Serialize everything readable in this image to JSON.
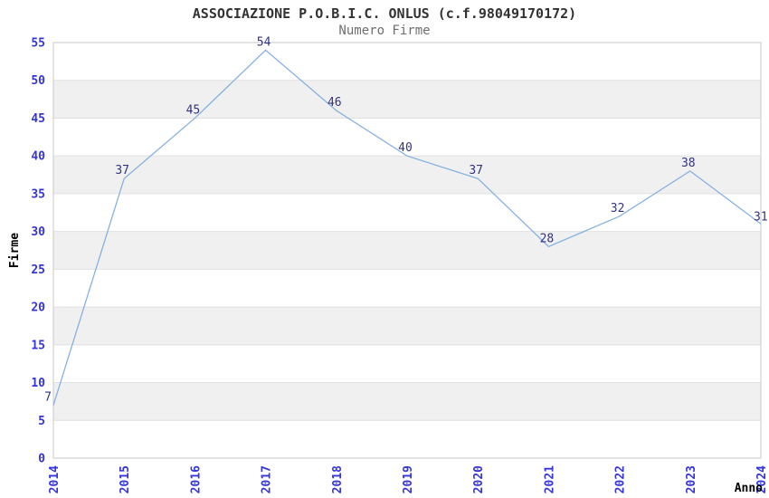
{
  "chart_data": {
    "type": "line",
    "title": "ASSOCIAZIONE P.O.B.I.C. ONLUS (c.f.98049170172)",
    "subtitle": "Numero Firme",
    "xlabel": "Anno",
    "ylabel": "Firme",
    "categories": [
      "2014",
      "2015",
      "2016",
      "2017",
      "2018",
      "2019",
      "2020",
      "2021",
      "2022",
      "2023",
      "2024"
    ],
    "values": [
      7,
      37,
      45,
      54,
      46,
      40,
      37,
      28,
      32,
      38,
      31
    ],
    "ylim": [
      0,
      55
    ],
    "ytick_step": 5,
    "yticks": [
      0,
      5,
      10,
      15,
      20,
      25,
      30,
      35,
      40,
      45,
      50,
      55
    ],
    "grid": "horizontal-bands-alternating",
    "legend": "none",
    "colors": {
      "line": "#85b1e3",
      "tick_label": "#3434dd",
      "value_label": "#333380",
      "band": "#f0f0f0",
      "grid": "#e0e0e0",
      "border": "#c9c9c9",
      "title": "#333333",
      "subtitle": "#6e6e6e",
      "axis_title": "#000000",
      "background": "#ffffff"
    }
  }
}
